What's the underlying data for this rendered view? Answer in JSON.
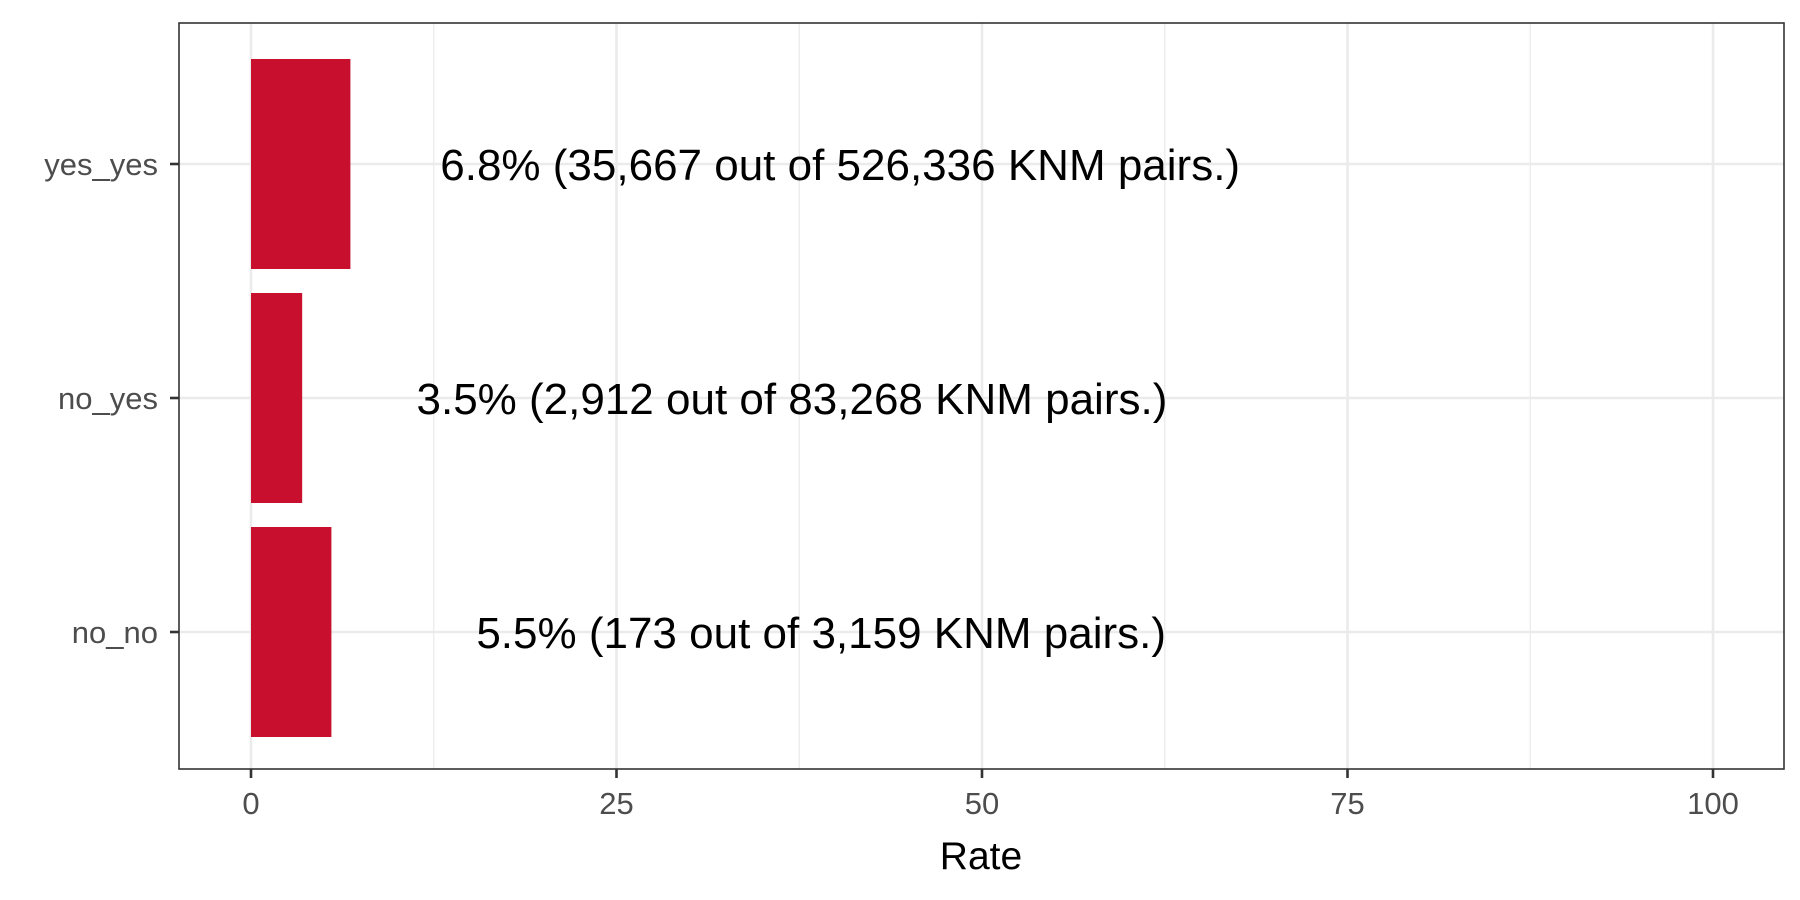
{
  "chart_data": {
    "type": "bar",
    "orientation": "horizontal",
    "categories": [
      "yes_yes",
      "no_yes",
      "no_no"
    ],
    "values": [
      6.8,
      3.5,
      5.5
    ],
    "bar_labels": [
      "6.8% (35,667 out of 526,336 KNM pairs.)",
      "3.5% (2,912 out of 83,268 KNM pairs.)",
      "5.5% (173 out of 3,159 KNM pairs.)"
    ],
    "xlabel": "Rate",
    "ylabel": "",
    "xlim": [
      0,
      100
    ],
    "xticks": [
      "0",
      "25",
      "50",
      "75",
      "100"
    ],
    "grid": true,
    "bar_color": "#C8102E"
  }
}
